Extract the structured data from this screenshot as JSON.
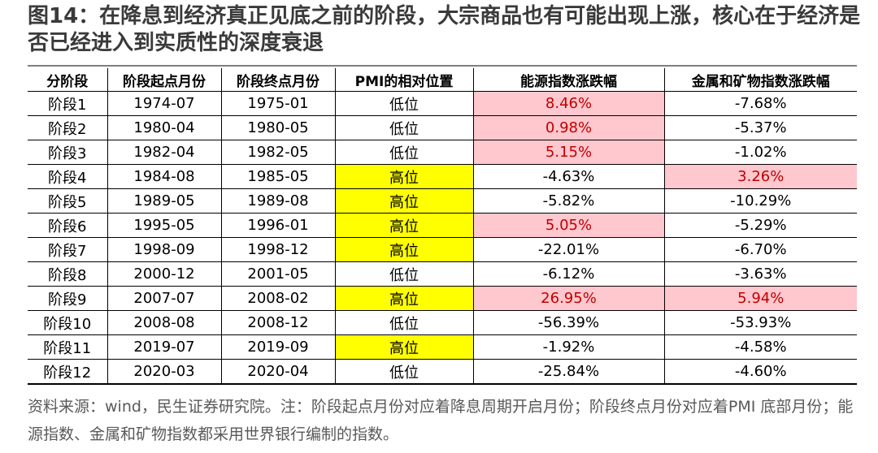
{
  "title": "图14：在降息到经济真正见底之前的阶段，大宗商品也有可能出现上涨，核心在于经济是否已经进入到实质性的深度衰退",
  "table": {
    "headers": [
      "分阶段",
      "阶段起点月份",
      "阶段终点月份",
      "PMI的相对位置",
      "能源指数涨跌幅",
      "金属和矿物指数涨跌幅"
    ],
    "rows": [
      {
        "stage": "阶段1",
        "start": "1974-07",
        "end": "1975-01",
        "pmi": "低位",
        "pmi_high": false,
        "energy": "8.46%",
        "energy_up": true,
        "metal": "-7.68%",
        "metal_up": false
      },
      {
        "stage": "阶段2",
        "start": "1980-04",
        "end": "1980-05",
        "pmi": "低位",
        "pmi_high": false,
        "energy": "0.98%",
        "energy_up": true,
        "metal": "-5.37%",
        "metal_up": false
      },
      {
        "stage": "阶段3",
        "start": "1982-04",
        "end": "1982-05",
        "pmi": "低位",
        "pmi_high": false,
        "energy": "5.15%",
        "energy_up": true,
        "metal": "-1.02%",
        "metal_up": false
      },
      {
        "stage": "阶段4",
        "start": "1984-08",
        "end": "1985-05",
        "pmi": "高位",
        "pmi_high": true,
        "energy": "-4.63%",
        "energy_up": false,
        "metal": "3.26%",
        "metal_up": true
      },
      {
        "stage": "阶段5",
        "start": "1989-05",
        "end": "1989-08",
        "pmi": "高位",
        "pmi_high": true,
        "energy": "-5.82%",
        "energy_up": false,
        "metal": "-10.29%",
        "metal_up": false
      },
      {
        "stage": "阶段6",
        "start": "1995-05",
        "end": "1996-01",
        "pmi": "高位",
        "pmi_high": true,
        "energy": "5.05%",
        "energy_up": true,
        "metal": "-5.29%",
        "metal_up": false
      },
      {
        "stage": "阶段7",
        "start": "1998-09",
        "end": "1998-12",
        "pmi": "高位",
        "pmi_high": true,
        "energy": "-22.01%",
        "energy_up": false,
        "metal": "-6.70%",
        "metal_up": false
      },
      {
        "stage": "阶段8",
        "start": "2000-12",
        "end": "2001-05",
        "pmi": "低位",
        "pmi_high": false,
        "energy": "-6.12%",
        "energy_up": false,
        "metal": "-3.63%",
        "metal_up": false
      },
      {
        "stage": "阶段9",
        "start": "2007-07",
        "end": "2008-02",
        "pmi": "高位",
        "pmi_high": true,
        "energy": "26.95%",
        "energy_up": true,
        "metal": "5.94%",
        "metal_up": true
      },
      {
        "stage": "阶段10",
        "start": "2008-08",
        "end": "2008-12",
        "pmi": "低位",
        "pmi_high": false,
        "energy": "-56.39%",
        "energy_up": false,
        "metal": "-53.93%",
        "metal_up": false
      },
      {
        "stage": "阶段11",
        "start": "2019-07",
        "end": "2019-09",
        "pmi": "高位",
        "pmi_high": true,
        "energy": "-1.92%",
        "energy_up": false,
        "metal": "-4.58%",
        "metal_up": false
      },
      {
        "stage": "阶段12",
        "start": "2020-03",
        "end": "2020-04",
        "pmi": "低位",
        "pmi_high": false,
        "energy": "-25.84%",
        "energy_up": false,
        "metal": "-4.60%",
        "metal_up": false
      }
    ]
  },
  "note": "资料来源：wind，民生证券研究院。注：阶段起点月份对应着降息周期开启月份；阶段终点月份对应着PMI 底部月份；能源指数、金属和矿物指数都采用世界银行编制的指数。",
  "colors": {
    "high_position_fill": "#ffff00",
    "rise_fill": "#ffc7ce",
    "rise_text": "#c00000"
  }
}
